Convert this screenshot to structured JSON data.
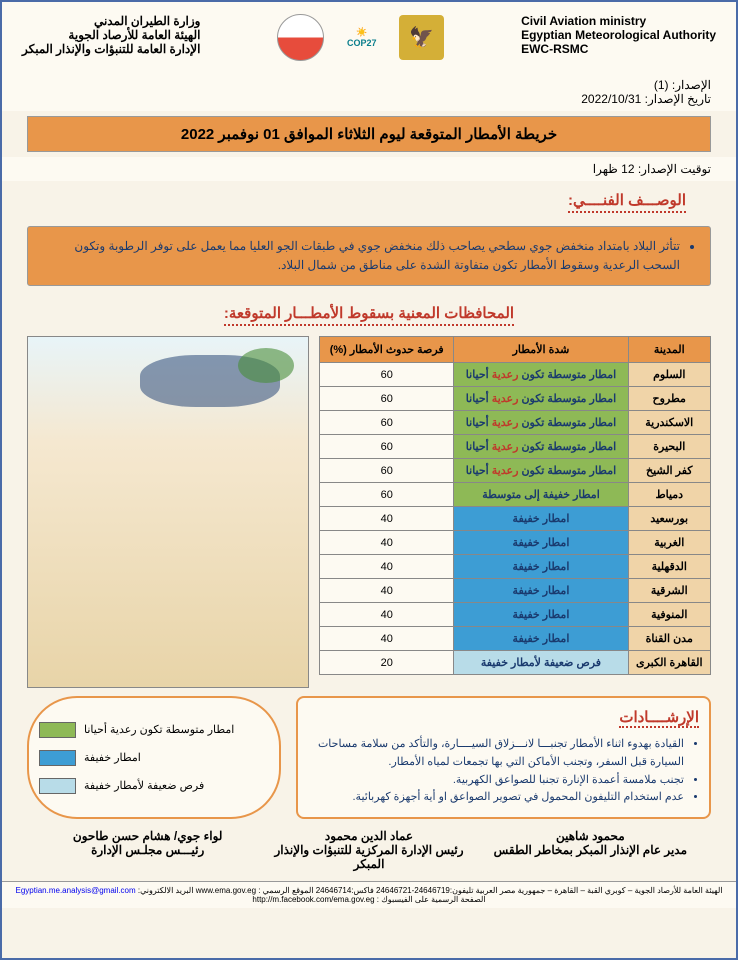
{
  "header": {
    "left_en": [
      "Civil Aviation ministry",
      "Egyptian Meteorological Authority",
      "EWC-RSMC"
    ],
    "right_ar": [
      "وزارة الطيران المدني",
      "الهيئة العامة للأرصاد الجوية",
      "الإدارة العامة للتنبؤات والإنذار المبكر"
    ]
  },
  "issue": {
    "num_label": "الإصدار: (1)",
    "date_label": "تاريخ الإصدار: 2022/10/31",
    "time_label": "توقيت الإصدار: 12 ظهرا"
  },
  "title": "خريطة الأمطار المتوقعة ليوم الثلاثاء الموافق 01 نوفمبر 2022",
  "tech_desc_title": "الوصـــف الفنــــي:",
  "tech_desc": "تتأثر البلاد بامتداد منخفض جوي سطحي يصاحب ذلك منخفض جوي في طبقات الجو العليا مما يعمل على توفر الرطوبة وتكون السحب الرعدية وسقوط الأمطار تكون متفاوتة الشدة على مناطق من شمال البلاد.",
  "gov_title": "المحافظات المعنية بسقوط الأمطـــار المتوقعة:",
  "table": {
    "headers": [
      "المدينة",
      "شدة الأمطار",
      "فرصة حدوث الأمطار (%)"
    ],
    "rows": [
      {
        "city": "السلوم",
        "intensity": "امطار متوسطة  تكون رعدية أحيانا",
        "prob": "60",
        "class": "green-cell",
        "split": true
      },
      {
        "city": "مطروح",
        "intensity": "امطار متوسطة  تكون رعدية أحيانا",
        "prob": "60",
        "class": "green-cell",
        "split": true
      },
      {
        "city": "الاسكندرية",
        "intensity": "امطار متوسطة  تكون رعدية أحيانا",
        "prob": "60",
        "class": "green-cell",
        "split": true
      },
      {
        "city": "البحيرة",
        "intensity": "امطار متوسطة  تكون رعدية أحيانا",
        "prob": "60",
        "class": "green-cell",
        "split": true
      },
      {
        "city": "كفر الشيخ",
        "intensity": "امطار متوسطة  تكون رعدية أحيانا",
        "prob": "60",
        "class": "green-cell",
        "split": true
      },
      {
        "city": "دمياط",
        "intensity": "امطار خفيفة إلى متوسطة",
        "prob": "60",
        "class": "green-cell",
        "split": false
      },
      {
        "city": "بورسعيد",
        "intensity": "امطار خفيفة",
        "prob": "40",
        "class": "blue-cell",
        "split": false
      },
      {
        "city": "الغربية",
        "intensity": "امطار خفيفة",
        "prob": "40",
        "class": "blue-cell",
        "split": false
      },
      {
        "city": "الدقهلية",
        "intensity": "امطار خفيفة",
        "prob": "40",
        "class": "blue-cell",
        "split": false
      },
      {
        "city": "الشرقية",
        "intensity": "امطار خفيفة",
        "prob": "40",
        "class": "blue-cell",
        "split": false
      },
      {
        "city": "المنوفية",
        "intensity": "امطار خفيفة",
        "prob": "40",
        "class": "blue-cell",
        "split": false
      },
      {
        "city": "مدن القناة",
        "intensity": "امطار خفيفة",
        "prob": "40",
        "class": "blue-cell",
        "split": false
      },
      {
        "city": "القاهرة الكبرى",
        "intensity": "فرص ضعيفة لأمطار خفيفة",
        "prob": "20",
        "class": "lightblue-cell",
        "split": false
      }
    ]
  },
  "guidance": {
    "title": "الإرشــــادات",
    "items": [
      "القيادة بهدوء اثناء الأمطار تجنبـــا لانـــزلاق السيــــارة، والتأكد من سلامة مساحات السيارة قبل السفر، وتجنب الأماكن التي بها تجمعات لمياه الأمطار.",
      "تجنب ملامسة أعمدة الإنارة  تجنبا للصواعق الكهربية.",
      "عدم استخدام التليفون المحمول في تصوير الصواعق او أية أجهزة كهربائية."
    ]
  },
  "legend": [
    {
      "text": "امطار متوسطة  تكون رعدية أحيانا",
      "color": "#8eb956"
    },
    {
      "text": "امطار خفيفة",
      "color": "#3d9dd4"
    },
    {
      "text": "فرص ضعيفة لأمطار خفيفة",
      "color": "#b8dce8"
    }
  ],
  "signatures": [
    {
      "name": "محمود شاهين",
      "title": "مدير عام الإنذار المبكر بمخاطر الطقس"
    },
    {
      "name": "عماد الدين محمود",
      "title": "رئيس الإدارة المركزية للتنبؤات والإنذار المبكر"
    },
    {
      "name": "لواء جوي/ هشام حسن طاحون",
      "title": "رئيـــس مجلـس الإدارة"
    }
  ],
  "footer": {
    "text": "الهيئة العامة للأرصاد الجوية – كوبري القبة – القاهرة – جمهورية مصر العربية تليفون:24646719-24646721 فاكس:24646714 الموقع الرسمي : www.ema.gov.eg البريد الالكتروني: ",
    "email": "Egyptian.me.analysis@gmail.com",
    "fb": "الصفحة الرسمية على الفيسبوك : http://m.facebook.com/ema.gov.eg"
  }
}
